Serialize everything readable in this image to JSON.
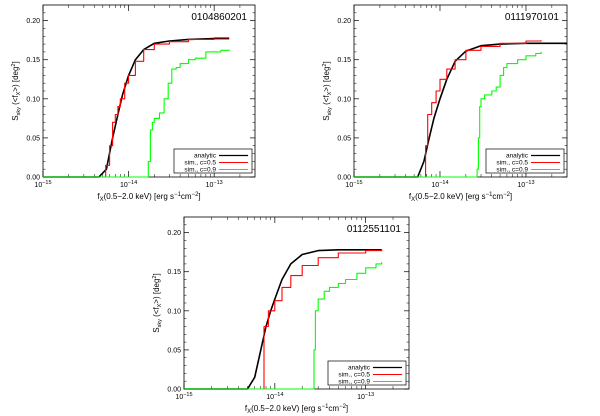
{
  "chart_data": [
    {
      "type": "line",
      "title": "0104860201",
      "xlabel": "f",
      "xlabel_sub": "X",
      "xlabel_rest": "(0.5−2.0 keV) [erg s",
      "xlabel_sup1": "−1",
      "xlabel_mid": "cm",
      "xlabel_sup2": "−2",
      "xlabel_end": "]",
      "ylabel": "S",
      "ylabel_sub": "sky",
      "ylabel_rest": " (<f",
      "ylabel_sub2": "X",
      "ylabel_rest2": ">) [deg",
      "ylabel_sup": "2",
      "ylabel_end": "]",
      "xscale": "log",
      "xlim": [
        1e-15,
        3e-13
      ],
      "ylim": [
        0,
        0.22
      ],
      "xticks": [
        {
          "value": 1e-15,
          "base": "10",
          "exp": "−15"
        },
        {
          "value": 1e-14,
          "base": "10",
          "exp": "−14"
        },
        {
          "value": 1e-13,
          "base": "10",
          "exp": "−13"
        }
      ],
      "yticks": [
        "0.00",
        "0.05",
        "0.10",
        "0.15",
        "0.20"
      ],
      "legend_position": "bottom-right",
      "series": [
        {
          "name": "analytic",
          "color": "#000000",
          "points": [
            [
              4.5e-15,
              0
            ],
            [
              5.5e-15,
              0.01
            ],
            [
              6.5e-15,
              0.05
            ],
            [
              7.5e-15,
              0.08
            ],
            [
              8.5e-15,
              0.105
            ],
            [
              1e-14,
              0.13
            ],
            [
              1.2e-14,
              0.15
            ],
            [
              1.5e-14,
              0.163
            ],
            [
              2e-14,
              0.171
            ],
            [
              3e-14,
              0.174
            ],
            [
              5e-14,
              0.176
            ],
            [
              1e-13,
              0.177
            ],
            [
              1.5e-13,
              0.177
            ]
          ]
        },
        {
          "name": "sim., c=0.5",
          "color": "#ff0000",
          "points": [
            [
              5.2e-15,
              0
            ],
            [
              5.4e-15,
              0.015
            ],
            [
              6e-15,
              0.04
            ],
            [
              6.5e-15,
              0.07
            ],
            [
              7e-15,
              0.08
            ],
            [
              7.5e-15,
              0.09
            ],
            [
              8e-15,
              0.1
            ],
            [
              9e-15,
              0.12
            ],
            [
              1e-14,
              0.13
            ],
            [
              1.2e-14,
              0.148
            ],
            [
              1.5e-14,
              0.163
            ],
            [
              2e-14,
              0.17
            ],
            [
              3e-14,
              0.173
            ],
            [
              5e-14,
              0.176
            ],
            [
              1e-13,
              0.178
            ],
            [
              1.5e-13,
              0.178
            ]
          ]
        },
        {
          "name": "sim., c=0.9",
          "color": "#00ff00",
          "points": [
            [
              1.6e-14,
              0
            ],
            [
              1.7e-14,
              0.02
            ],
            [
              1.8e-14,
              0.06
            ],
            [
              1.9e-14,
              0.07
            ],
            [
              2e-14,
              0.075
            ],
            [
              2.3e-14,
              0.082
            ],
            [
              2.6e-14,
              0.1
            ],
            [
              2.9e-14,
              0.12
            ],
            [
              3.2e-14,
              0.138
            ],
            [
              3.6e-14,
              0.14
            ],
            [
              4e-14,
              0.145
            ],
            [
              5e-14,
              0.15
            ],
            [
              6e-14,
              0.152
            ],
            [
              8e-14,
              0.16
            ],
            [
              1.2e-13,
              0.162
            ],
            [
              1.5e-13,
              0.163
            ]
          ]
        }
      ]
    },
    {
      "type": "line",
      "title": "0111970101",
      "xlabel": "f",
      "xlabel_sub": "X",
      "xlabel_rest": "(0.5−2.0 keV) [erg s",
      "xlabel_sup1": "−1",
      "xlabel_mid": "cm",
      "xlabel_sup2": "−2",
      "xlabel_end": "]",
      "ylabel": "S",
      "ylabel_sub": "sky",
      "ylabel_rest": " (<f",
      "ylabel_sub2": "X",
      "ylabel_rest2": ">) [deg",
      "ylabel_sup": "2",
      "ylabel_end": "]",
      "xscale": "log",
      "xlim": [
        1e-15,
        3e-13
      ],
      "ylim": [
        0,
        0.22
      ],
      "xticks": [
        {
          "value": 1e-15,
          "base": "10",
          "exp": "−15"
        },
        {
          "value": 1e-14,
          "base": "10",
          "exp": "−14"
        },
        {
          "value": 1e-13,
          "base": "10",
          "exp": "−13"
        }
      ],
      "yticks": [
        "0.00",
        "0.05",
        "0.10",
        "0.15",
        "0.20"
      ],
      "legend_position": "bottom-right",
      "series": [
        {
          "name": "analytic",
          "color": "#000000",
          "points": [
            [
              5.5e-15,
              0
            ],
            [
              6.5e-15,
              0.02
            ],
            [
              7.5e-15,
              0.05
            ],
            [
              8.5e-15,
              0.075
            ],
            [
              1e-14,
              0.1
            ],
            [
              1.2e-14,
              0.125
            ],
            [
              1.5e-14,
              0.148
            ],
            [
              2e-14,
              0.161
            ],
            [
              3e-14,
              0.168
            ],
            [
              5e-14,
              0.17
            ],
            [
              1e-13,
              0.171
            ],
            [
              3e-13,
              0.171
            ]
          ]
        },
        {
          "name": "sim., c=0.5",
          "color": "#ff0000",
          "points": [
            [
              6.6e-15,
              0
            ],
            [
              6.8e-15,
              0.04
            ],
            [
              7.2e-15,
              0.08
            ],
            [
              8e-15,
              0.095
            ],
            [
              9e-15,
              0.11
            ],
            [
              1e-14,
              0.125
            ],
            [
              1.2e-14,
              0.138
            ],
            [
              1.5e-14,
              0.15
            ],
            [
              2e-14,
              0.162
            ],
            [
              3e-14,
              0.167
            ],
            [
              5e-14,
              0.171
            ],
            [
              1e-13,
              0.174
            ],
            [
              1.5e-13,
              0.175
            ]
          ]
        },
        {
          "name": "sim., c=0.9",
          "color": "#00ff00",
          "points": [
            [
              2.6e-14,
              0
            ],
            [
              2.7e-14,
              0.01
            ],
            [
              2.8e-14,
              0.05
            ],
            [
              2.9e-14,
              0.09
            ],
            [
              3e-14,
              0.1
            ],
            [
              3.3e-14,
              0.105
            ],
            [
              4e-14,
              0.11
            ],
            [
              4.5e-14,
              0.115
            ],
            [
              5e-14,
              0.13
            ],
            [
              5.5e-14,
              0.14
            ],
            [
              6e-14,
              0.145
            ],
            [
              8e-14,
              0.15
            ],
            [
              1e-13,
              0.155
            ],
            [
              1.3e-13,
              0.158
            ],
            [
              1.5e-13,
              0.16
            ]
          ]
        }
      ]
    },
    {
      "type": "line",
      "title": "0112551101",
      "xlabel": "f",
      "xlabel_sub": "X",
      "xlabel_rest": "(0.5−2.0 keV) [erg s",
      "xlabel_sup1": "−1",
      "xlabel_mid": "cm",
      "xlabel_sup2": "−2",
      "xlabel_end": "]",
      "ylabel": "S",
      "ylabel_sub": "sky",
      "ylabel_rest": " (<f",
      "ylabel_sub2": "X",
      "ylabel_rest2": ">) [deg",
      "ylabel_sup": "2",
      "ylabel_end": "]",
      "xscale": "log",
      "xlim": [
        1e-15,
        3e-13
      ],
      "ylim": [
        0,
        0.22
      ],
      "xticks": [
        {
          "value": 1e-15,
          "base": "10",
          "exp": "−15"
        },
        {
          "value": 1e-14,
          "base": "10",
          "exp": "−14"
        },
        {
          "value": 1e-13,
          "base": "10",
          "exp": "−13"
        }
      ],
      "yticks": [
        "0.00",
        "0.05",
        "0.10",
        "0.15",
        "0.20"
      ],
      "legend_position": "bottom-right",
      "series": [
        {
          "name": "analytic",
          "color": "#000000",
          "points": [
            [
              5e-15,
              0
            ],
            [
              6e-15,
              0.015
            ],
            [
              7e-15,
              0.05
            ],
            [
              8e-15,
              0.08
            ],
            [
              9e-15,
              0.1
            ],
            [
              1e-14,
              0.115
            ],
            [
              1.2e-14,
              0.14
            ],
            [
              1.5e-14,
              0.16
            ],
            [
              2e-14,
              0.172
            ],
            [
              3e-14,
              0.177
            ],
            [
              5e-14,
              0.178
            ],
            [
              1e-13,
              0.178
            ],
            [
              1.5e-13,
              0.178
            ]
          ]
        },
        {
          "name": "sim., c=0.5",
          "color": "#ff0000",
          "points": [
            [
              7.5e-15,
              0
            ],
            [
              7.6e-15,
              0.08
            ],
            [
              8.5e-15,
              0.1
            ],
            [
              1e-14,
              0.113
            ],
            [
              1.2e-14,
              0.13
            ],
            [
              1.5e-14,
              0.145
            ],
            [
              2e-14,
              0.158
            ],
            [
              3e-14,
              0.168
            ],
            [
              5e-14,
              0.174
            ],
            [
              1e-13,
              0.177
            ],
            [
              1.5e-13,
              0.178
            ]
          ]
        },
        {
          "name": "sim., c=0.9",
          "color": "#00ff00",
          "points": [
            [
              2.6e-14,
              0
            ],
            [
              2.7e-14,
              0.05
            ],
            [
              2.8e-14,
              0.1
            ],
            [
              3e-14,
              0.115
            ],
            [
              3.5e-14,
              0.125
            ],
            [
              4e-14,
              0.13
            ],
            [
              5e-14,
              0.135
            ],
            [
              6e-14,
              0.14
            ],
            [
              8e-14,
              0.148
            ],
            [
              1e-13,
              0.155
            ],
            [
              1.3e-13,
              0.16
            ],
            [
              1.5e-13,
              0.162
            ]
          ]
        }
      ]
    }
  ]
}
